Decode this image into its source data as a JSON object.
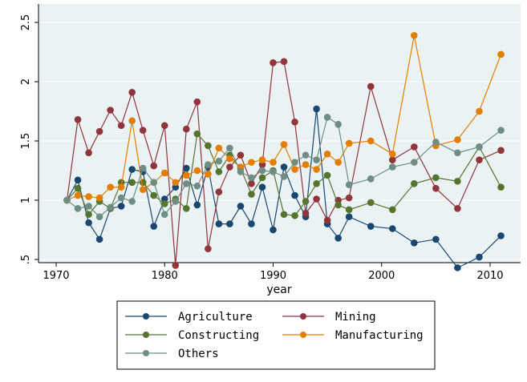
{
  "chart_data": {
    "type": "line",
    "title": "",
    "xlabel": "year",
    "ylabel": "",
    "xlim": [
      1970,
      2012
    ],
    "ylim": [
      0.4,
      2.5
    ],
    "x_ticks": [
      "1970",
      "1980",
      "1990",
      "2000",
      "2010"
    ],
    "y_ticks": [
      ".5",
      "1",
      "1.5",
      "2",
      "2.5"
    ],
    "grid": "horizontal",
    "legend_position": "bottom",
    "colors": {
      "Agriculture": "#1a476f",
      "Mining": "#90353b",
      "Constructing": "#55752f",
      "Manufacturing": "#e37e00",
      "Others": "#6e8e84",
      "plot_background": "#eaf2f3",
      "grid": "#eaf2f3"
    },
    "series": [
      {
        "name": "Agriculture",
        "x": [
          1971,
          1972,
          1973,
          1974,
          1975,
          1976,
          1977,
          1978,
          1979,
          1980,
          1981,
          1982,
          1983,
          1984,
          1985,
          1986,
          1987,
          1988,
          1989,
          1990,
          1991,
          1992,
          1993,
          1994,
          1995,
          1996,
          1997,
          1999,
          2001,
          2003,
          2005,
          2007,
          2009,
          2011
        ],
        "y": [
          1.0,
          1.17,
          0.81,
          0.67,
          0.93,
          0.95,
          1.26,
          1.24,
          0.78,
          1.01,
          1.11,
          1.27,
          0.96,
          1.28,
          0.8,
          0.8,
          0.95,
          0.8,
          1.11,
          0.75,
          1.28,
          1.04,
          0.86,
          1.77,
          0.8,
          0.68,
          0.86,
          0.78,
          0.76,
          0.64,
          0.67,
          0.43,
          0.52,
          0.7
        ]
      },
      {
        "name": "Mining",
        "x": [
          1971,
          1972,
          1973,
          1974,
          1975,
          1976,
          1977,
          1978,
          1979,
          1980,
          1981,
          1982,
          1983,
          1984,
          1985,
          1986,
          1987,
          1988,
          1989,
          1990,
          1991,
          1992,
          1993,
          1994,
          1995,
          1996,
          1997,
          1999,
          2001,
          2003,
          2005,
          2007,
          2009,
          2011
        ],
        "y": [
          1.0,
          1.68,
          1.4,
          1.58,
          1.76,
          1.63,
          1.91,
          1.59,
          1.29,
          1.63,
          0.45,
          1.6,
          1.83,
          0.59,
          1.07,
          1.28,
          1.38,
          1.14,
          1.3,
          2.16,
          2.17,
          1.66,
          0.89,
          1.01,
          0.83,
          1.0,
          1.02,
          1.96,
          1.34,
          1.45,
          1.1,
          0.93,
          1.34,
          1.42
        ]
      },
      {
        "name": "Constructing",
        "x": [
          1971,
          1972,
          1973,
          1974,
          1975,
          1976,
          1977,
          1978,
          1979,
          1980,
          1981,
          1982,
          1983,
          1984,
          1985,
          1986,
          1987,
          1988,
          1989,
          1990,
          1991,
          1992,
          1993,
          1994,
          1995,
          1996,
          1997,
          1999,
          2001,
          2003,
          2005,
          2007,
          2009,
          2011
        ],
        "y": [
          1.0,
          1.1,
          0.88,
          0.99,
          0.93,
          1.15,
          1.15,
          1.15,
          1.04,
          0.97,
          1.01,
          0.93,
          1.56,
          1.46,
          1.24,
          1.38,
          1.27,
          1.05,
          1.19,
          1.25,
          0.88,
          0.87,
          0.99,
          1.14,
          1.21,
          0.96,
          0.92,
          0.98,
          0.92,
          1.14,
          1.19,
          1.16,
          1.45,
          1.11
        ]
      },
      {
        "name": "Manufacturing",
        "x": [
          1971,
          1972,
          1973,
          1974,
          1975,
          1976,
          1977,
          1978,
          1979,
          1980,
          1981,
          1982,
          1983,
          1984,
          1985,
          1986,
          1987,
          1988,
          1989,
          1990,
          1991,
          1992,
          1993,
          1994,
          1995,
          1996,
          1997,
          1999,
          2001,
          2003,
          2005,
          2007,
          2009,
          2011
        ],
        "y": [
          1.0,
          1.04,
          1.03,
          1.02,
          1.11,
          1.11,
          1.67,
          1.09,
          1.15,
          1.23,
          1.15,
          1.21,
          1.25,
          1.22,
          1.44,
          1.35,
          1.28,
          1.32,
          1.34,
          1.32,
          1.47,
          1.26,
          1.3,
          1.26,
          1.39,
          1.32,
          1.48,
          1.5,
          1.39,
          2.39,
          1.46,
          1.51,
          1.75,
          2.23
        ]
      },
      {
        "name": "Others",
        "x": [
          1971,
          1972,
          1973,
          1974,
          1975,
          1976,
          1977,
          1978,
          1979,
          1980,
          1981,
          1982,
          1983,
          1984,
          1985,
          1986,
          1987,
          1988,
          1989,
          1990,
          1991,
          1992,
          1993,
          1994,
          1995,
          1996,
          1997,
          1999,
          2001,
          2003,
          2005,
          2007,
          2009,
          2011
        ],
        "y": [
          1.0,
          0.93,
          0.95,
          0.86,
          0.94,
          1.02,
          0.99,
          1.27,
          1.15,
          0.88,
          0.99,
          1.14,
          1.12,
          1.3,
          1.33,
          1.44,
          1.24,
          1.19,
          1.25,
          1.24,
          1.2,
          1.32,
          1.38,
          1.34,
          1.7,
          1.64,
          1.13,
          1.18,
          1.28,
          1.32,
          1.49,
          1.4,
          1.45,
          1.59
        ]
      }
    ]
  }
}
